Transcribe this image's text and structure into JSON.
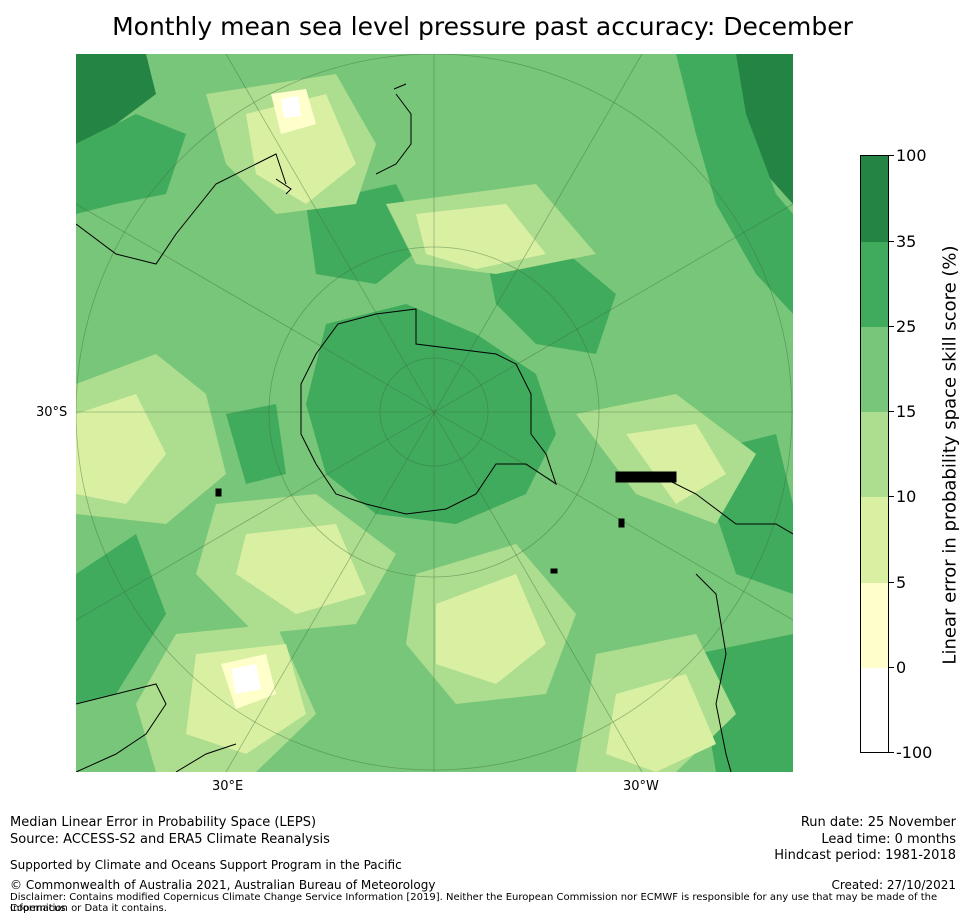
{
  "title": "Monthly mean sea level pressure past accuracy: December",
  "map": {
    "lat_labels": [
      "30°S"
    ],
    "lon_labels": [
      "30°E",
      "30°W"
    ],
    "palette": {
      "white": "#ffffff",
      "lightyellow": "#ffffcc",
      "yellowgreen": "#d9f0a3",
      "lightgreen": "#addd8e",
      "green": "#78c679",
      "midgreen": "#41ab5d",
      "darkgreen": "#238443"
    }
  },
  "colorbar": {
    "title": "Linear error in probability space skill score (%)",
    "ticks": [
      "100",
      "35",
      "25",
      "15",
      "10",
      "5",
      "0",
      "-100"
    ],
    "colors": [
      "#238443",
      "#41ab5d",
      "#78c679",
      "#addd8e",
      "#d9f0a3",
      "#ffffcc",
      "#ffffff"
    ]
  },
  "footer": {
    "left_line1": "Median Linear Error in Probability Space (LEPS)",
    "left_line2": "Source: ACCESS-S2 and ERA5 Climate Reanalysis",
    "support": "Supported by Climate and Oceans Support Program in the Pacific",
    "copyright": "© Commonwealth of Australia 2021, Australian Bureau of Meteorology",
    "disclaimer_line1": "Disclaimer: Contains modified Copernicus Climate Change Service Information [2019]. Neither the European Commission nor ECMWF is responsible for any use that may be made of the Copernicus",
    "disclaimer_line2": "Information or Data it contains.",
    "run_date": "Run date: 25 November",
    "lead_time": "Lead time: 0 months",
    "hindcast": "Hindcast period: 1981-2018",
    "created": "Created: 27/10/2021"
  }
}
